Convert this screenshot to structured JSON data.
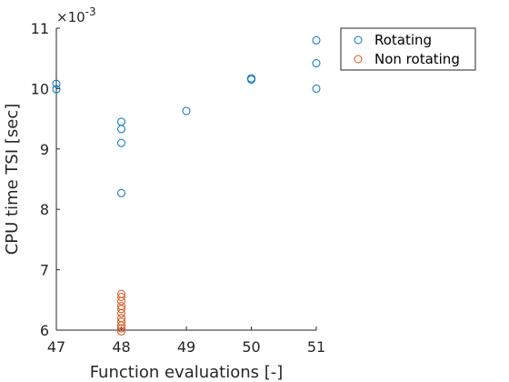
{
  "chart_data": {
    "type": "scatter",
    "title": "",
    "xlabel": "Function evaluations [-]",
    "ylabel": "CPU time TSI [sec]",
    "xlim": [
      47,
      51
    ],
    "ylim": [
      0.006,
      0.011
    ],
    "x_ticks": [
      47,
      48,
      49,
      50,
      51
    ],
    "y_ticks": [
      6,
      7,
      8,
      9,
      10,
      11
    ],
    "y_multiplier_base": "×10",
    "y_multiplier_exponent": "-3",
    "grid": false,
    "legend_position": "outside-top-right",
    "series": [
      {
        "name": "Rotating",
        "color": "#0072BD",
        "marker": "circle-open",
        "points": [
          {
            "x": 47,
            "y": 0.01008
          },
          {
            "x": 47,
            "y": 0.00999
          },
          {
            "x": 48,
            "y": 0.00945
          },
          {
            "x": 48,
            "y": 0.00933
          },
          {
            "x": 48,
            "y": 0.0091
          },
          {
            "x": 48,
            "y": 0.00827
          },
          {
            "x": 49,
            "y": 0.00963
          },
          {
            "x": 50,
            "y": 0.01017
          },
          {
            "x": 50,
            "y": 0.01015
          },
          {
            "x": 51,
            "y": 0.0108
          },
          {
            "x": 51,
            "y": 0.01042
          },
          {
            "x": 51,
            "y": 0.01
          }
        ]
      },
      {
        "name": "Non rotating",
        "color": "#D95319",
        "marker": "circle-open",
        "points": [
          {
            "x": 48,
            "y": 0.0066
          },
          {
            "x": 48,
            "y": 0.00655
          },
          {
            "x": 48,
            "y": 0.00648
          },
          {
            "x": 48,
            "y": 0.0064
          },
          {
            "x": 48,
            "y": 0.00635
          },
          {
            "x": 48,
            "y": 0.00628
          },
          {
            "x": 48,
            "y": 0.0062
          },
          {
            "x": 48,
            "y": 0.00614
          },
          {
            "x": 48,
            "y": 0.00608
          },
          {
            "x": 48,
            "y": 0.00603
          },
          {
            "x": 48,
            "y": 0.00598
          }
        ]
      }
    ]
  }
}
